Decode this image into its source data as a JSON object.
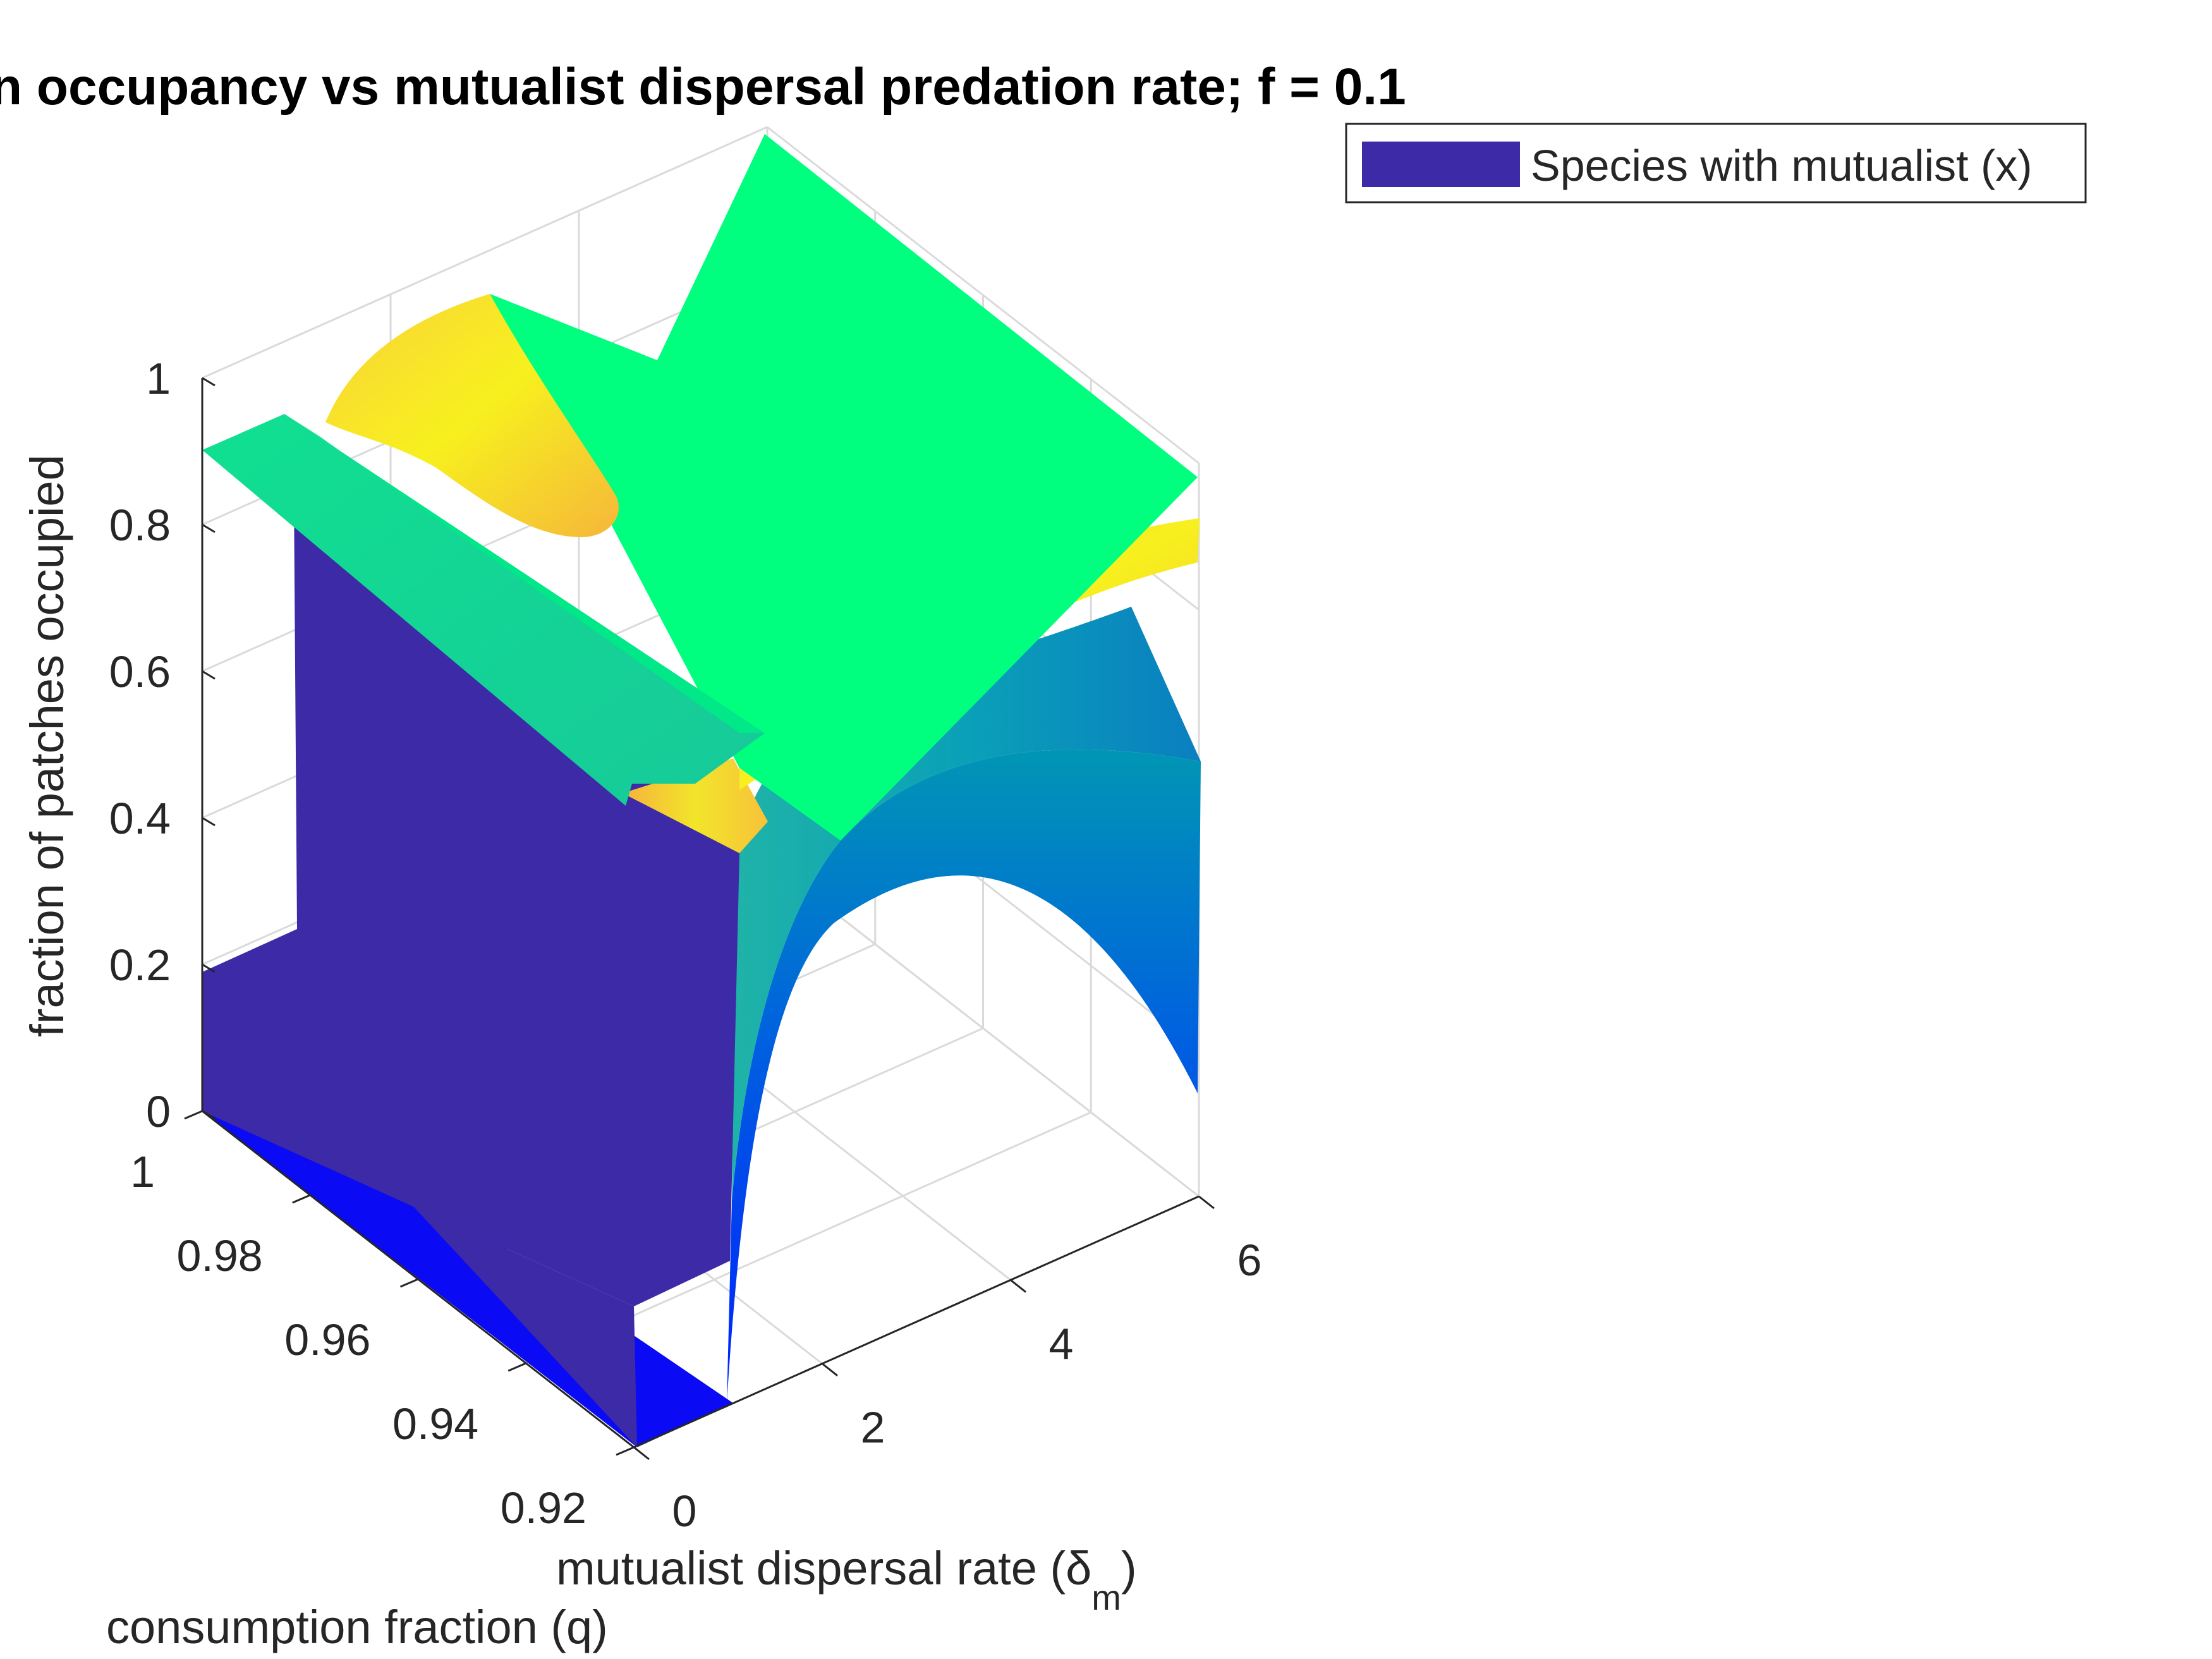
{
  "chart_data": {
    "type": "surface3d",
    "title": "n occupancy vs mutualist dispersal predation rate; f = 0.1",
    "xlabel": "mutualist dispersal rate (δ",
    "xlabel_subscript": "m",
    "xlabel_close": ")",
    "ylabel": "consumption fraction (q)",
    "zlabel": "fraction of patches occupied",
    "xlim": [
      0,
      6
    ],
    "ylim": [
      0.92,
      1
    ],
    "zlim": [
      0,
      1
    ],
    "x_ticks": [
      0,
      2,
      4,
      6
    ],
    "x_tick_labels": [
      "0",
      "2",
      "4",
      "6"
    ],
    "y_ticks": [
      0.92,
      0.94,
      0.96,
      0.98,
      1
    ],
    "y_tick_labels": [
      "0.92",
      "0.94",
      "0.96",
      "0.98",
      "1"
    ],
    "z_ticks": [
      0,
      0.2,
      0.4,
      0.6,
      0.8,
      1
    ],
    "z_tick_labels": [
      "0",
      "0.2",
      "0.4",
      "0.6",
      "0.8",
      "1"
    ],
    "grid": true,
    "legend": {
      "position": "top-right",
      "entries": [
        "Species with mutualist (x)"
      ]
    },
    "colors": {
      "mutualist": "#3D2AA6",
      "surface_high": "#00FF7F",
      "surface_mid": "#F5E61F",
      "surface_low": "#0000FF"
    },
    "series": [
      {
        "name": "Species with mutualist (x)",
        "description_values": {
          "q": [
            0.92,
            0.94,
            0.96,
            0.98,
            1.0
          ],
          "dispersal": [
            0.0,
            0.5,
            1.0,
            2.0,
            3.0,
            4.0,
            5.0,
            6.0
          ],
          "occupancy": [
            [
              0.0,
              0.18,
              0.55,
              0.88,
              0.89,
              0.89,
              0.9,
              0.9
            ],
            [
              0.0,
              0.2,
              0.6,
              0.88,
              0.89,
              0.9,
              0.9,
              0.9
            ],
            [
              0.0,
              0.2,
              0.65,
              0.89,
              0.9,
              0.9,
              0.9,
              0.9
            ],
            [
              0.18,
              0.2,
              0.7,
              0.89,
              0.9,
              0.9,
              0.9,
              0.9
            ],
            [
              0.18,
              0.89,
              0.89,
              0.9,
              0.9,
              0.9,
              0.9,
              0.9
            ]
          ]
        }
      },
      {
        "name": "",
        "description_values": {
          "q": [
            0.92,
            0.94,
            0.96,
            0.98,
            1.0
          ],
          "dispersal": [
            0.0,
            0.5,
            1.0,
            2.0,
            3.0,
            4.0,
            5.0,
            6.0
          ],
          "occupancy": [
            [
              0.0,
              0.0,
              0.3,
              0.5,
              0.56,
              0.6,
              0.62,
              0.63
            ],
            [
              0.0,
              0.0,
              0.32,
              0.55,
              0.62,
              0.65,
              0.67,
              0.68
            ],
            [
              0.0,
              0.0,
              0.35,
              0.6,
              0.68,
              0.72,
              0.74,
              0.75
            ],
            [
              0.0,
              0.0,
              0.4,
              0.7,
              0.78,
              0.82,
              0.84,
              0.85
            ],
            [
              0.0,
              0.0,
              0.45,
              0.95,
              0.93,
              0.92,
              0.91,
              0.9
            ]
          ]
        }
      }
    ]
  }
}
